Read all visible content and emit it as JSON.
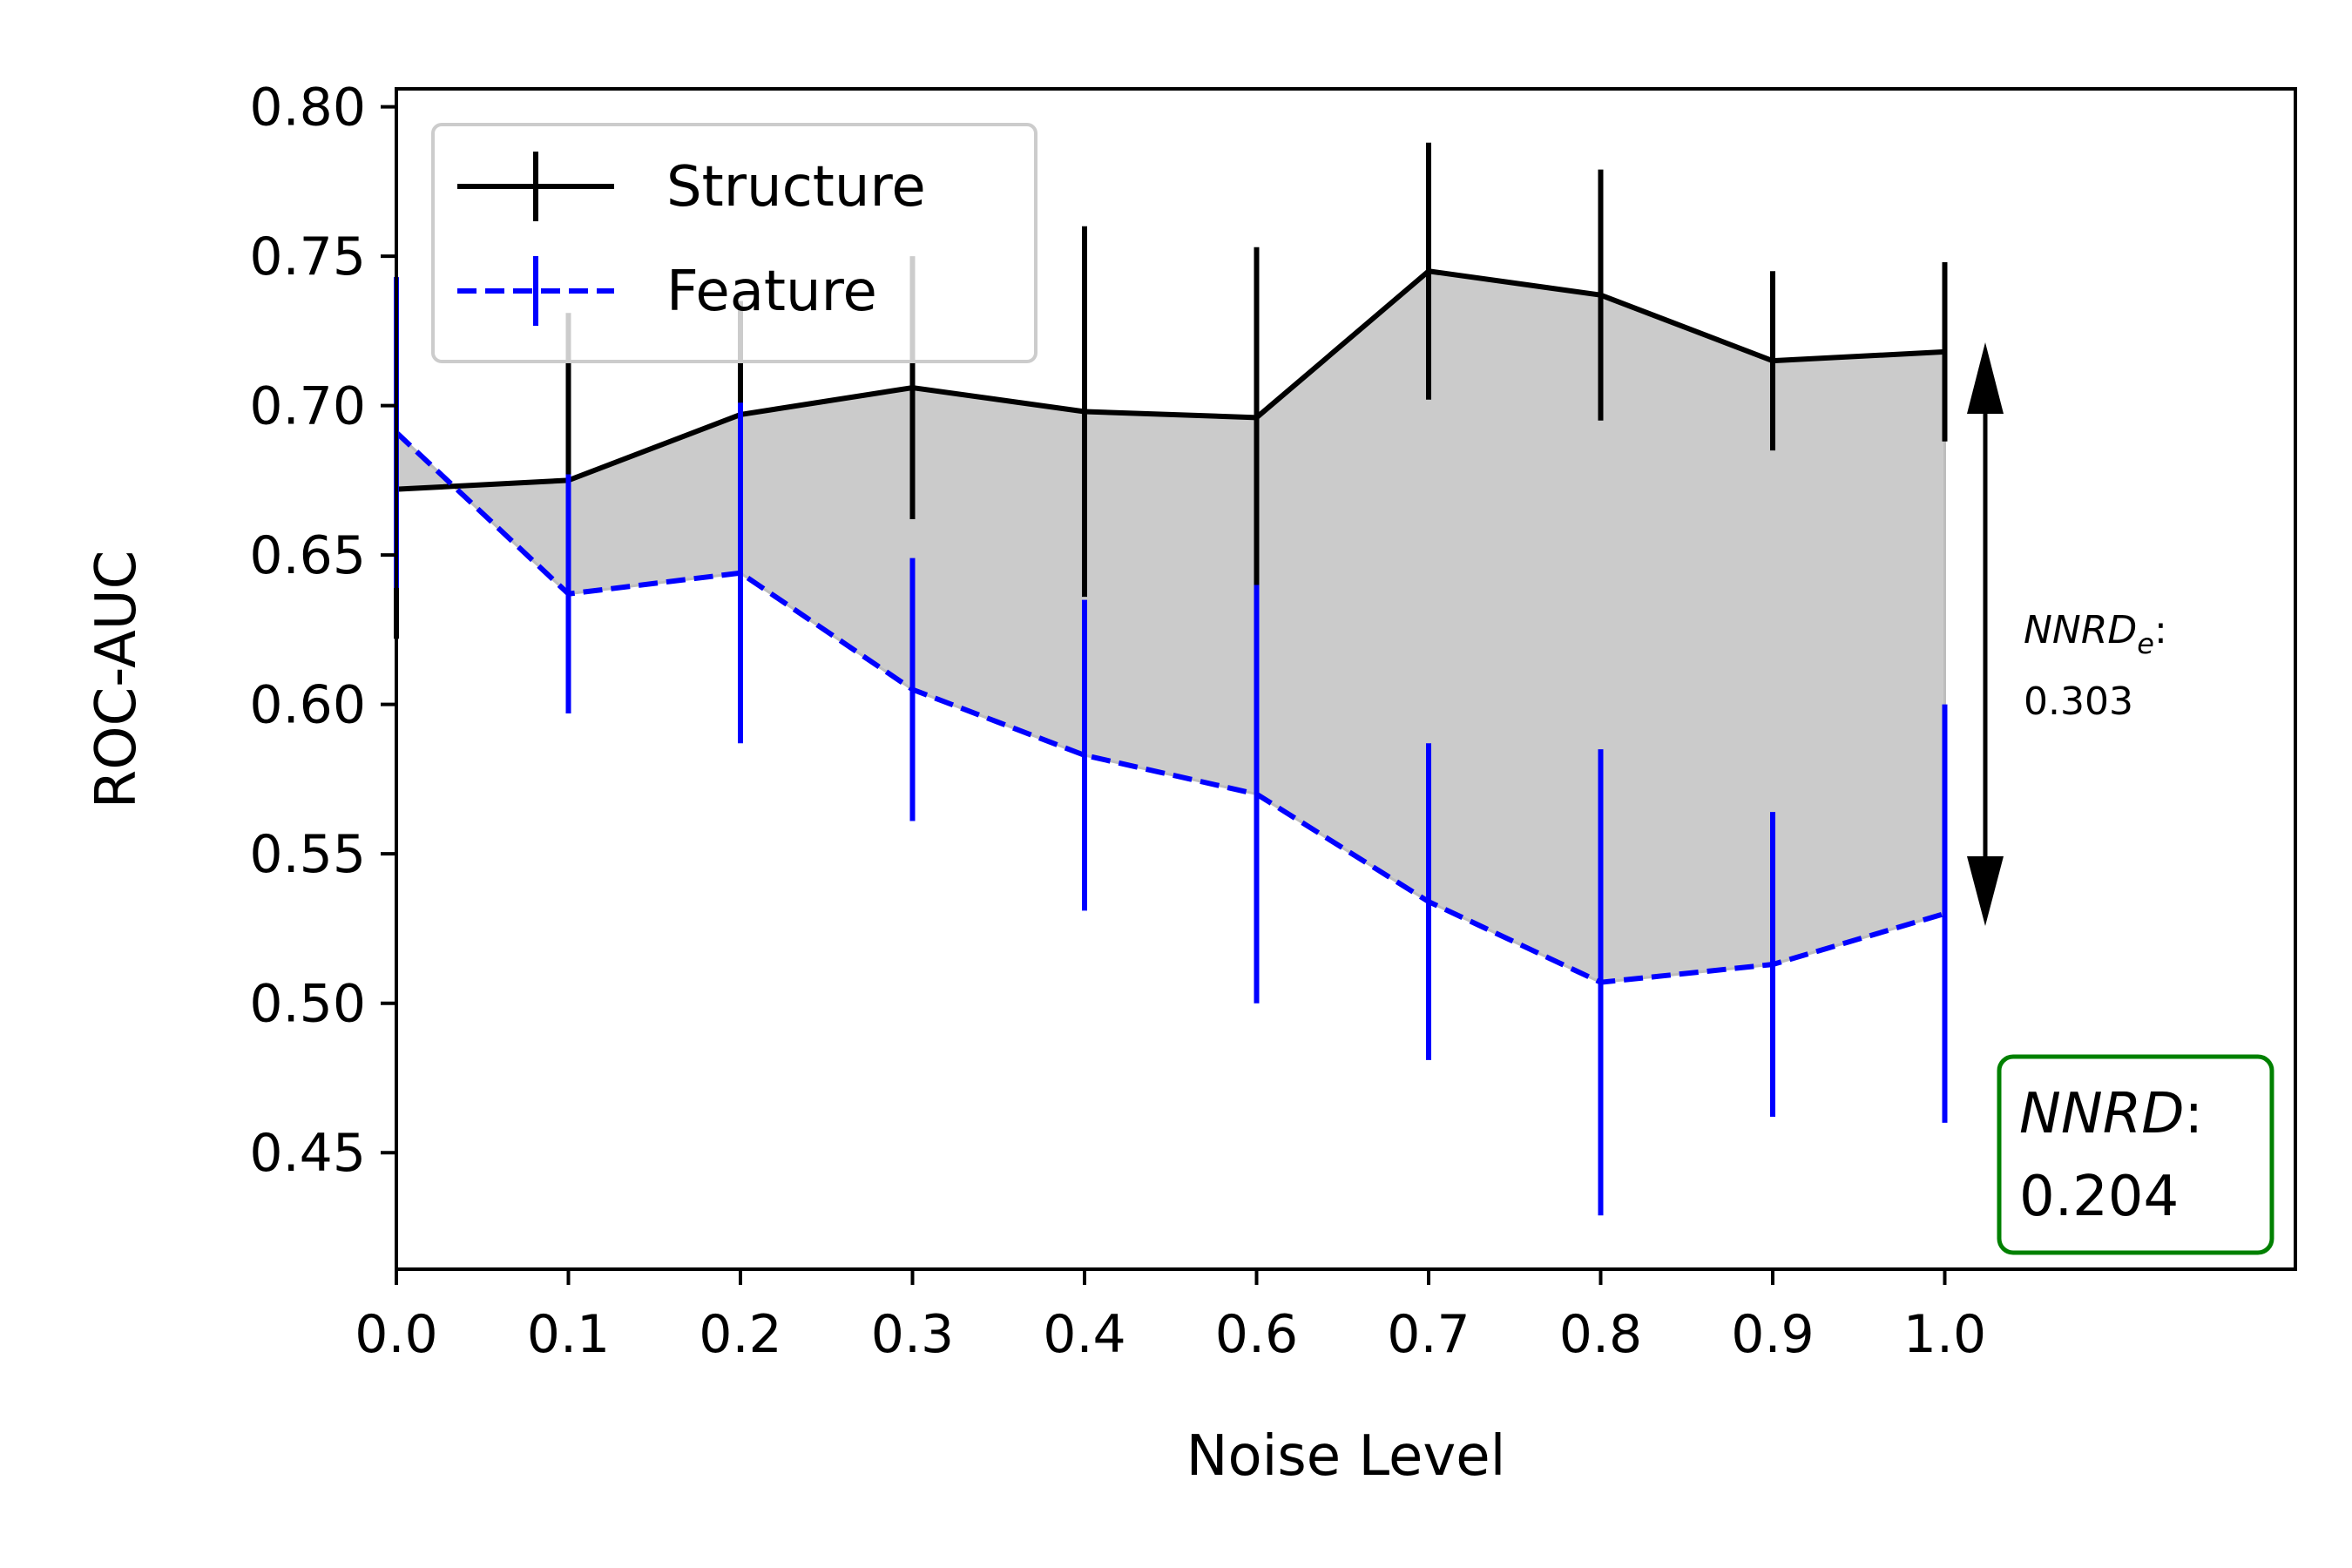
{
  "chart_data": {
    "type": "line",
    "xlabel": "Noise Level",
    "ylabel": "ROC-AUC",
    "x_tick_labels": [
      "0.0",
      "0.1",
      "0.2",
      "0.3",
      "0.4",
      "0.6",
      "0.7",
      "0.8",
      "0.9",
      "1.0"
    ],
    "y_ticks": [
      "0.45",
      "0.50",
      "0.55",
      "0.60",
      "0.65",
      "0.70",
      "0.75",
      "0.80"
    ],
    "ylim": [
      0.411,
      0.806
    ],
    "grid": false,
    "legend_position": "top-left",
    "series": [
      {
        "name": "Structure",
        "color": "#000000",
        "line_style": "solid",
        "values": [
          0.672,
          0.675,
          0.697,
          0.706,
          0.698,
          0.696,
          0.745,
          0.737,
          0.715,
          0.718
        ],
        "errors": [
          0.05,
          0.056,
          0.038,
          0.044,
          0.062,
          0.057,
          0.043,
          0.042,
          0.03,
          0.03
        ]
      },
      {
        "name": "Feature",
        "color": "#0000ff",
        "line_style": "dashed",
        "values": [
          0.691,
          0.637,
          0.644,
          0.605,
          0.583,
          0.57,
          0.534,
          0.507,
          0.513,
          0.53
        ],
        "errors": [
          0.052,
          0.04,
          0.057,
          0.044,
          0.052,
          0.07,
          0.053,
          0.078,
          0.051,
          0.07
        ]
      }
    ],
    "fill_between": {
      "series": [
        "Structure",
        "Feature"
      ],
      "color": "#cbcbcb"
    },
    "annotations": {
      "nnrd_e": {
        "label": "NNRD",
        "subscript": "e",
        "suffix": ":",
        "value": "0.303"
      },
      "nnrd": {
        "label": "NNRD",
        "suffix": ":",
        "value": "0.204",
        "box_color": "#008000"
      }
    }
  }
}
